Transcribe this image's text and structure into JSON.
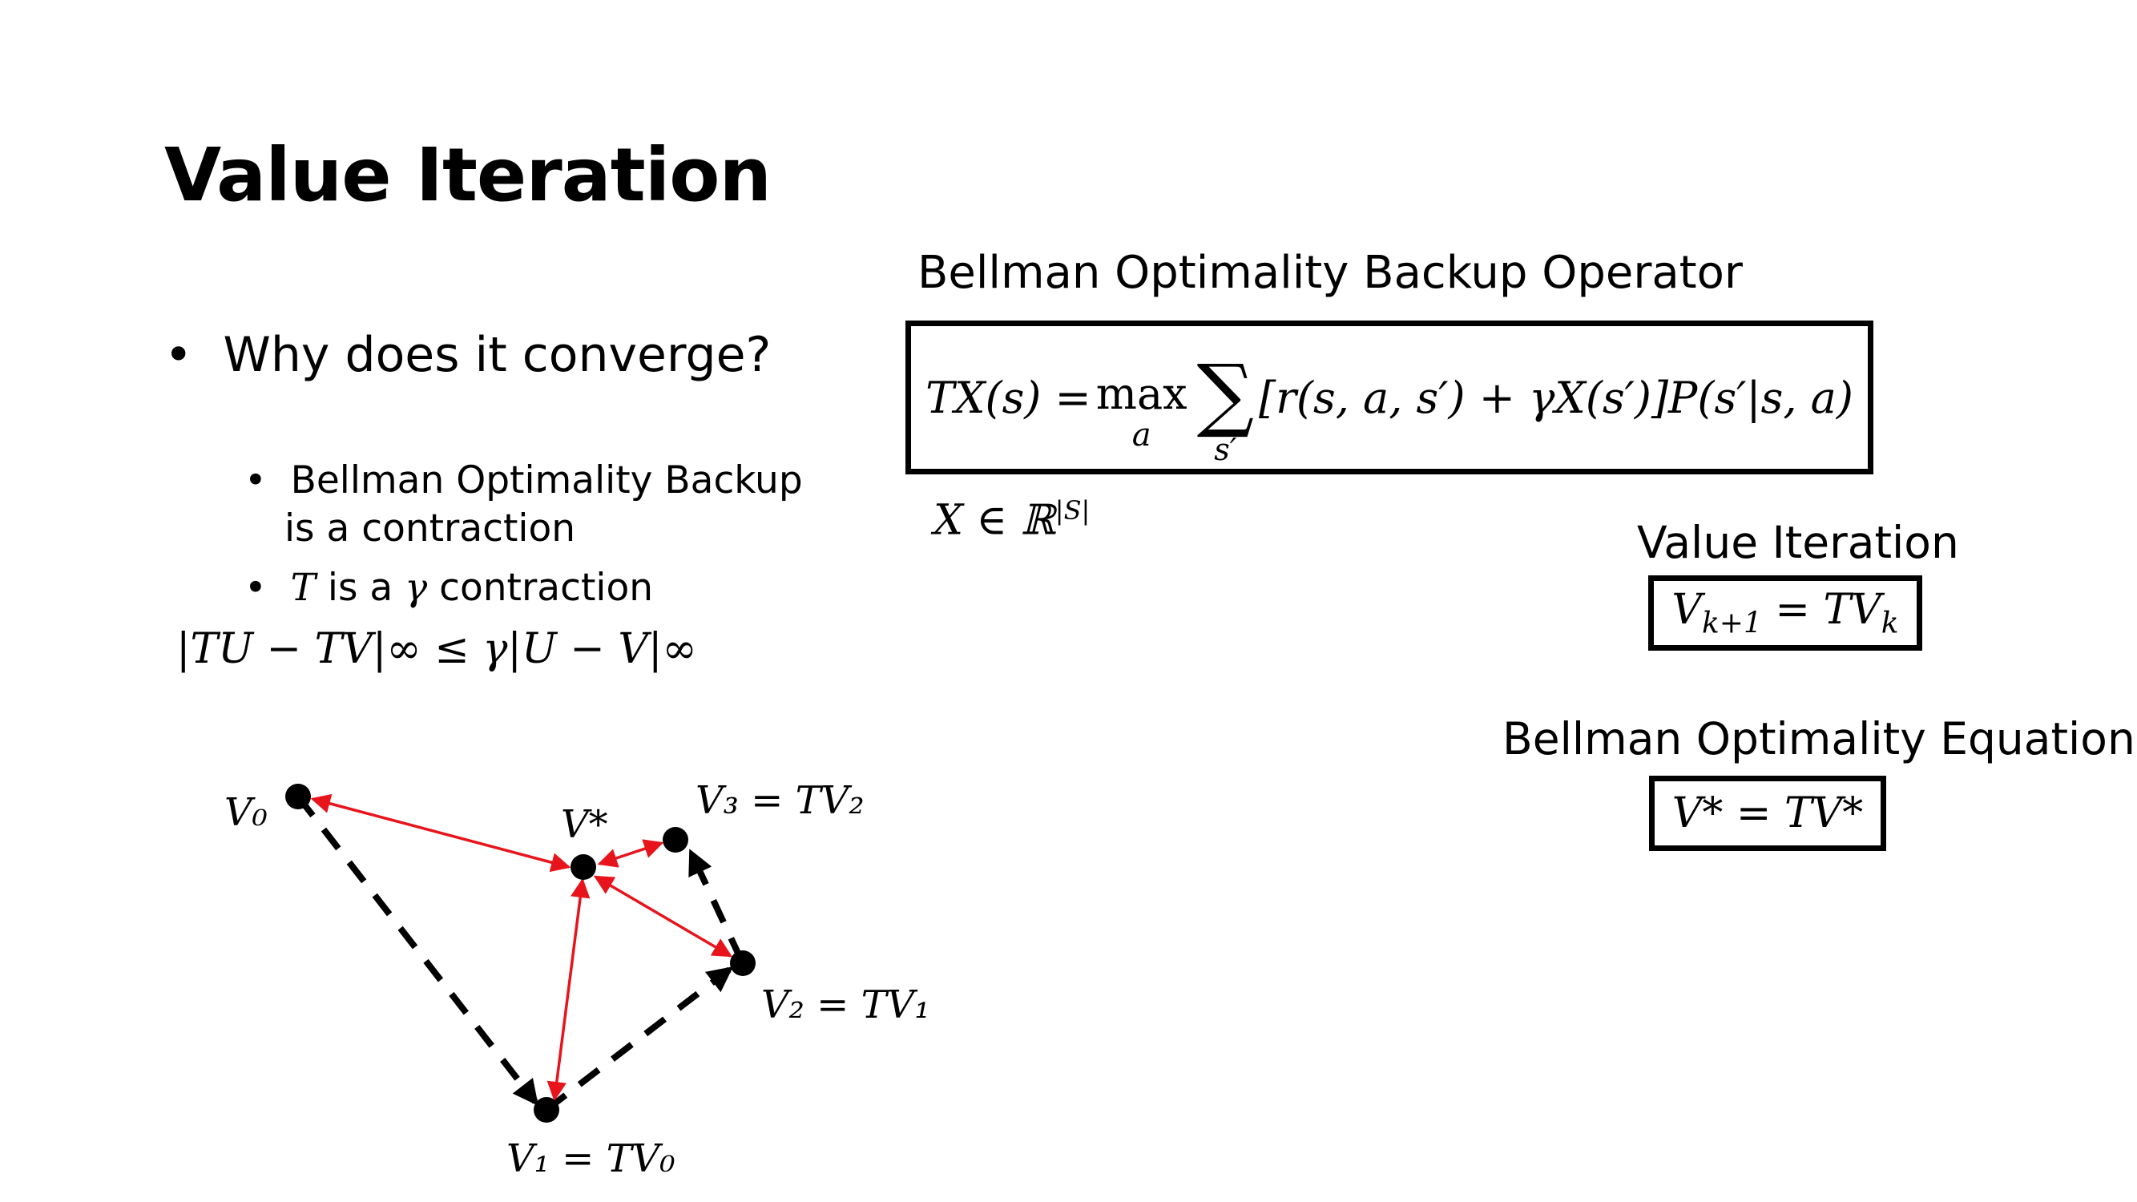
{
  "slide": {
    "title": "Value Iteration",
    "bullet_main": "Why does it converge?",
    "sub_bullet_1_line1": "Bellman Optimality Backup",
    "sub_bullet_1_line2": "is a contraction",
    "sub_bullet_2_T": "T",
    "sub_bullet_2_mid": " is a ",
    "sub_bullet_2_gamma": "γ",
    "sub_bullet_2_end": " contraction",
    "inequality": "|TU − TV|∞ ≤ γ|U − V|∞"
  },
  "operator": {
    "heading": "Bellman Optimality Backup Operator",
    "lhs": "TX(s) = ",
    "max": "max",
    "max_sub": "a",
    "sum_sub": "s′",
    "rhs": "[r(s, a, s′) + γX(s′)]P(s′|s, a)",
    "domain": "X ∈ ℝ",
    "domain_sup": "|S|"
  },
  "value_iteration": {
    "heading": "Value Iteration",
    "eq_V": "V",
    "eq_sub": "k+1",
    "eq_mid": " = TV",
    "eq_sub2": "k"
  },
  "bellman_equation": {
    "heading": "Bellman Optimality Equation",
    "eq": "V* = TV*"
  },
  "diagram_labels": {
    "v0": "V₀",
    "vstar": "V*",
    "v3": "V₃ = TV₂",
    "v2": "V₂ = TV₁",
    "v1": "V₁ = TV₀"
  },
  "colors": {
    "contraction_arrows": "#e8141b",
    "iteration_arrows": "#000000"
  }
}
